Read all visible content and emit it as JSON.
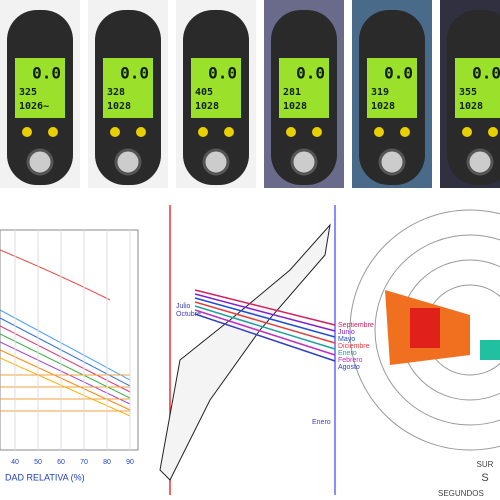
{
  "devices": [
    {
      "readings": [
        "0.0",
        "325",
        "1026~"
      ]
    },
    {
      "readings": [
        "0.0",
        "328",
        "1028"
      ]
    },
    {
      "readings": [
        "0.0",
        "405",
        "1028"
      ]
    },
    {
      "readings": [
        "0.0",
        "281",
        "1028"
      ]
    },
    {
      "readings": [
        "0.0",
        "319",
        "1028"
      ]
    },
    {
      "readings": [
        "0.0",
        "355",
        "1028"
      ]
    }
  ],
  "left_chart": {
    "x_label": "DAD RELATIVA (%)",
    "x_ticks": [
      "40",
      "50",
      "60",
      "70",
      "80",
      "90"
    ]
  },
  "middle_chart": {
    "left_months": [
      "Julio",
      "Octubre"
    ],
    "right_months": [
      "Septiembre",
      "Junio",
      "Mayo",
      "Diciembre",
      "Enero",
      "Febrero",
      "Agosto"
    ],
    "bottom_month": "Enero"
  },
  "right_chart": {
    "bottom_label": "SUR",
    "bottom_letter": "S",
    "axis_label": "SEGUNDOS"
  }
}
